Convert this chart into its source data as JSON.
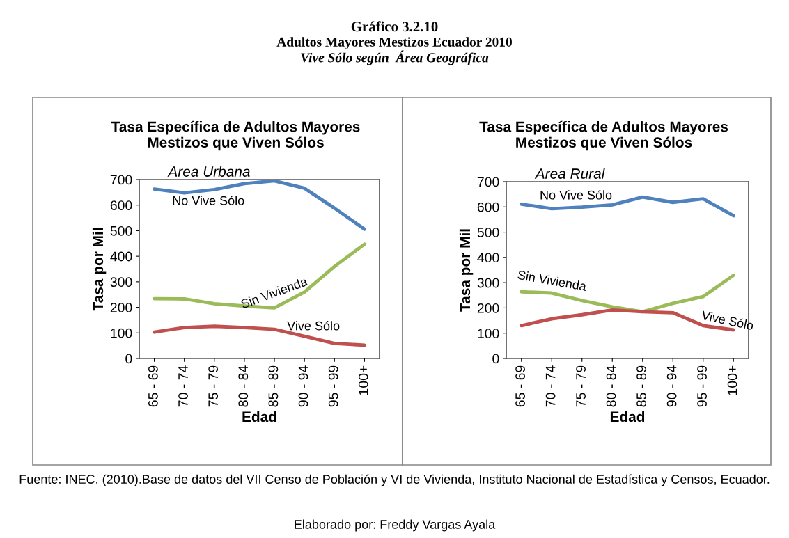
{
  "chart_data": [
    {
      "type": "line",
      "title": "Tasa Específica de Adultos Mayores\nMestizos que Viven Sólos",
      "subtitle": "Area Urbana",
      "xlabel": "Edad",
      "ylabel": "Tasa por Mil",
      "categories": [
        "65 - 69",
        "70 - 74",
        "75 - 79",
        "80 - 84",
        "85 - 89",
        "90 - 94",
        "95 - 99",
        "100+"
      ],
      "series": [
        {
          "name": "No Vive Sólo",
          "color": "#4f81bd",
          "values": [
            663,
            648,
            661,
            684,
            695,
            666,
            588,
            506
          ]
        },
        {
          "name": "Sin Vivienda",
          "color": "#9bbb59",
          "values": [
            234,
            233,
            214,
            205,
            198,
            260,
            360,
            447
          ]
        },
        {
          "name": "Vive Sólo",
          "color": "#c0504d",
          "values": [
            103,
            121,
            126,
            121,
            114,
            87,
            59,
            52
          ]
        }
      ],
      "ylim": [
        0,
        700
      ],
      "yticks": [
        0,
        100,
        200,
        300,
        400,
        500,
        600,
        700
      ],
      "grid": false,
      "legend": false,
      "marker": "none",
      "line_style": "solid",
      "annotations": [
        "Gráfico 3.2.10",
        "Adultos Mayores Mestizos Ecuador 2010",
        "Vive Sólo según  Área Geográfica"
      ]
    },
    {
      "type": "line",
      "title": "Tasa Específica de Adultos Mayores\nMestizos que Viven Sólos",
      "subtitle": "Area Rural",
      "xlabel": "Edad",
      "ylabel": "Tasa por Mil",
      "categories": [
        "65 - 69",
        "70 - 74",
        "75 - 79",
        "80 - 84",
        "85 - 89",
        "90 - 94",
        "95 - 99",
        "100+"
      ],
      "series": [
        {
          "name": "No Vive Sólo",
          "color": "#4f81bd",
          "values": [
            611,
            593,
            599,
            608,
            639,
            618,
            632,
            565
          ]
        },
        {
          "name": "Sin Vivienda",
          "color": "#9bbb59",
          "values": [
            264,
            259,
            229,
            204,
            185,
            218,
            245,
            329
          ]
        },
        {
          "name": "Vive Sólo",
          "color": "#c0504d",
          "values": [
            130,
            157,
            173,
            192,
            185,
            181,
            130,
            113
          ]
        }
      ],
      "ylim": [
        0,
        700
      ],
      "yticks": [
        0,
        100,
        200,
        300,
        400,
        500,
        600,
        700
      ],
      "grid": false,
      "legend": false,
      "marker": "none",
      "line_style": "solid",
      "annotations": [
        "Fuente: INEC. (2010).Base de datos del VII Censo de Población y VI de Vivienda, Instituto Nacional de Estadística y Censos, Ecuador.",
        "Elaborado por: Freddy Vargas Ayala"
      ]
    }
  ]
}
